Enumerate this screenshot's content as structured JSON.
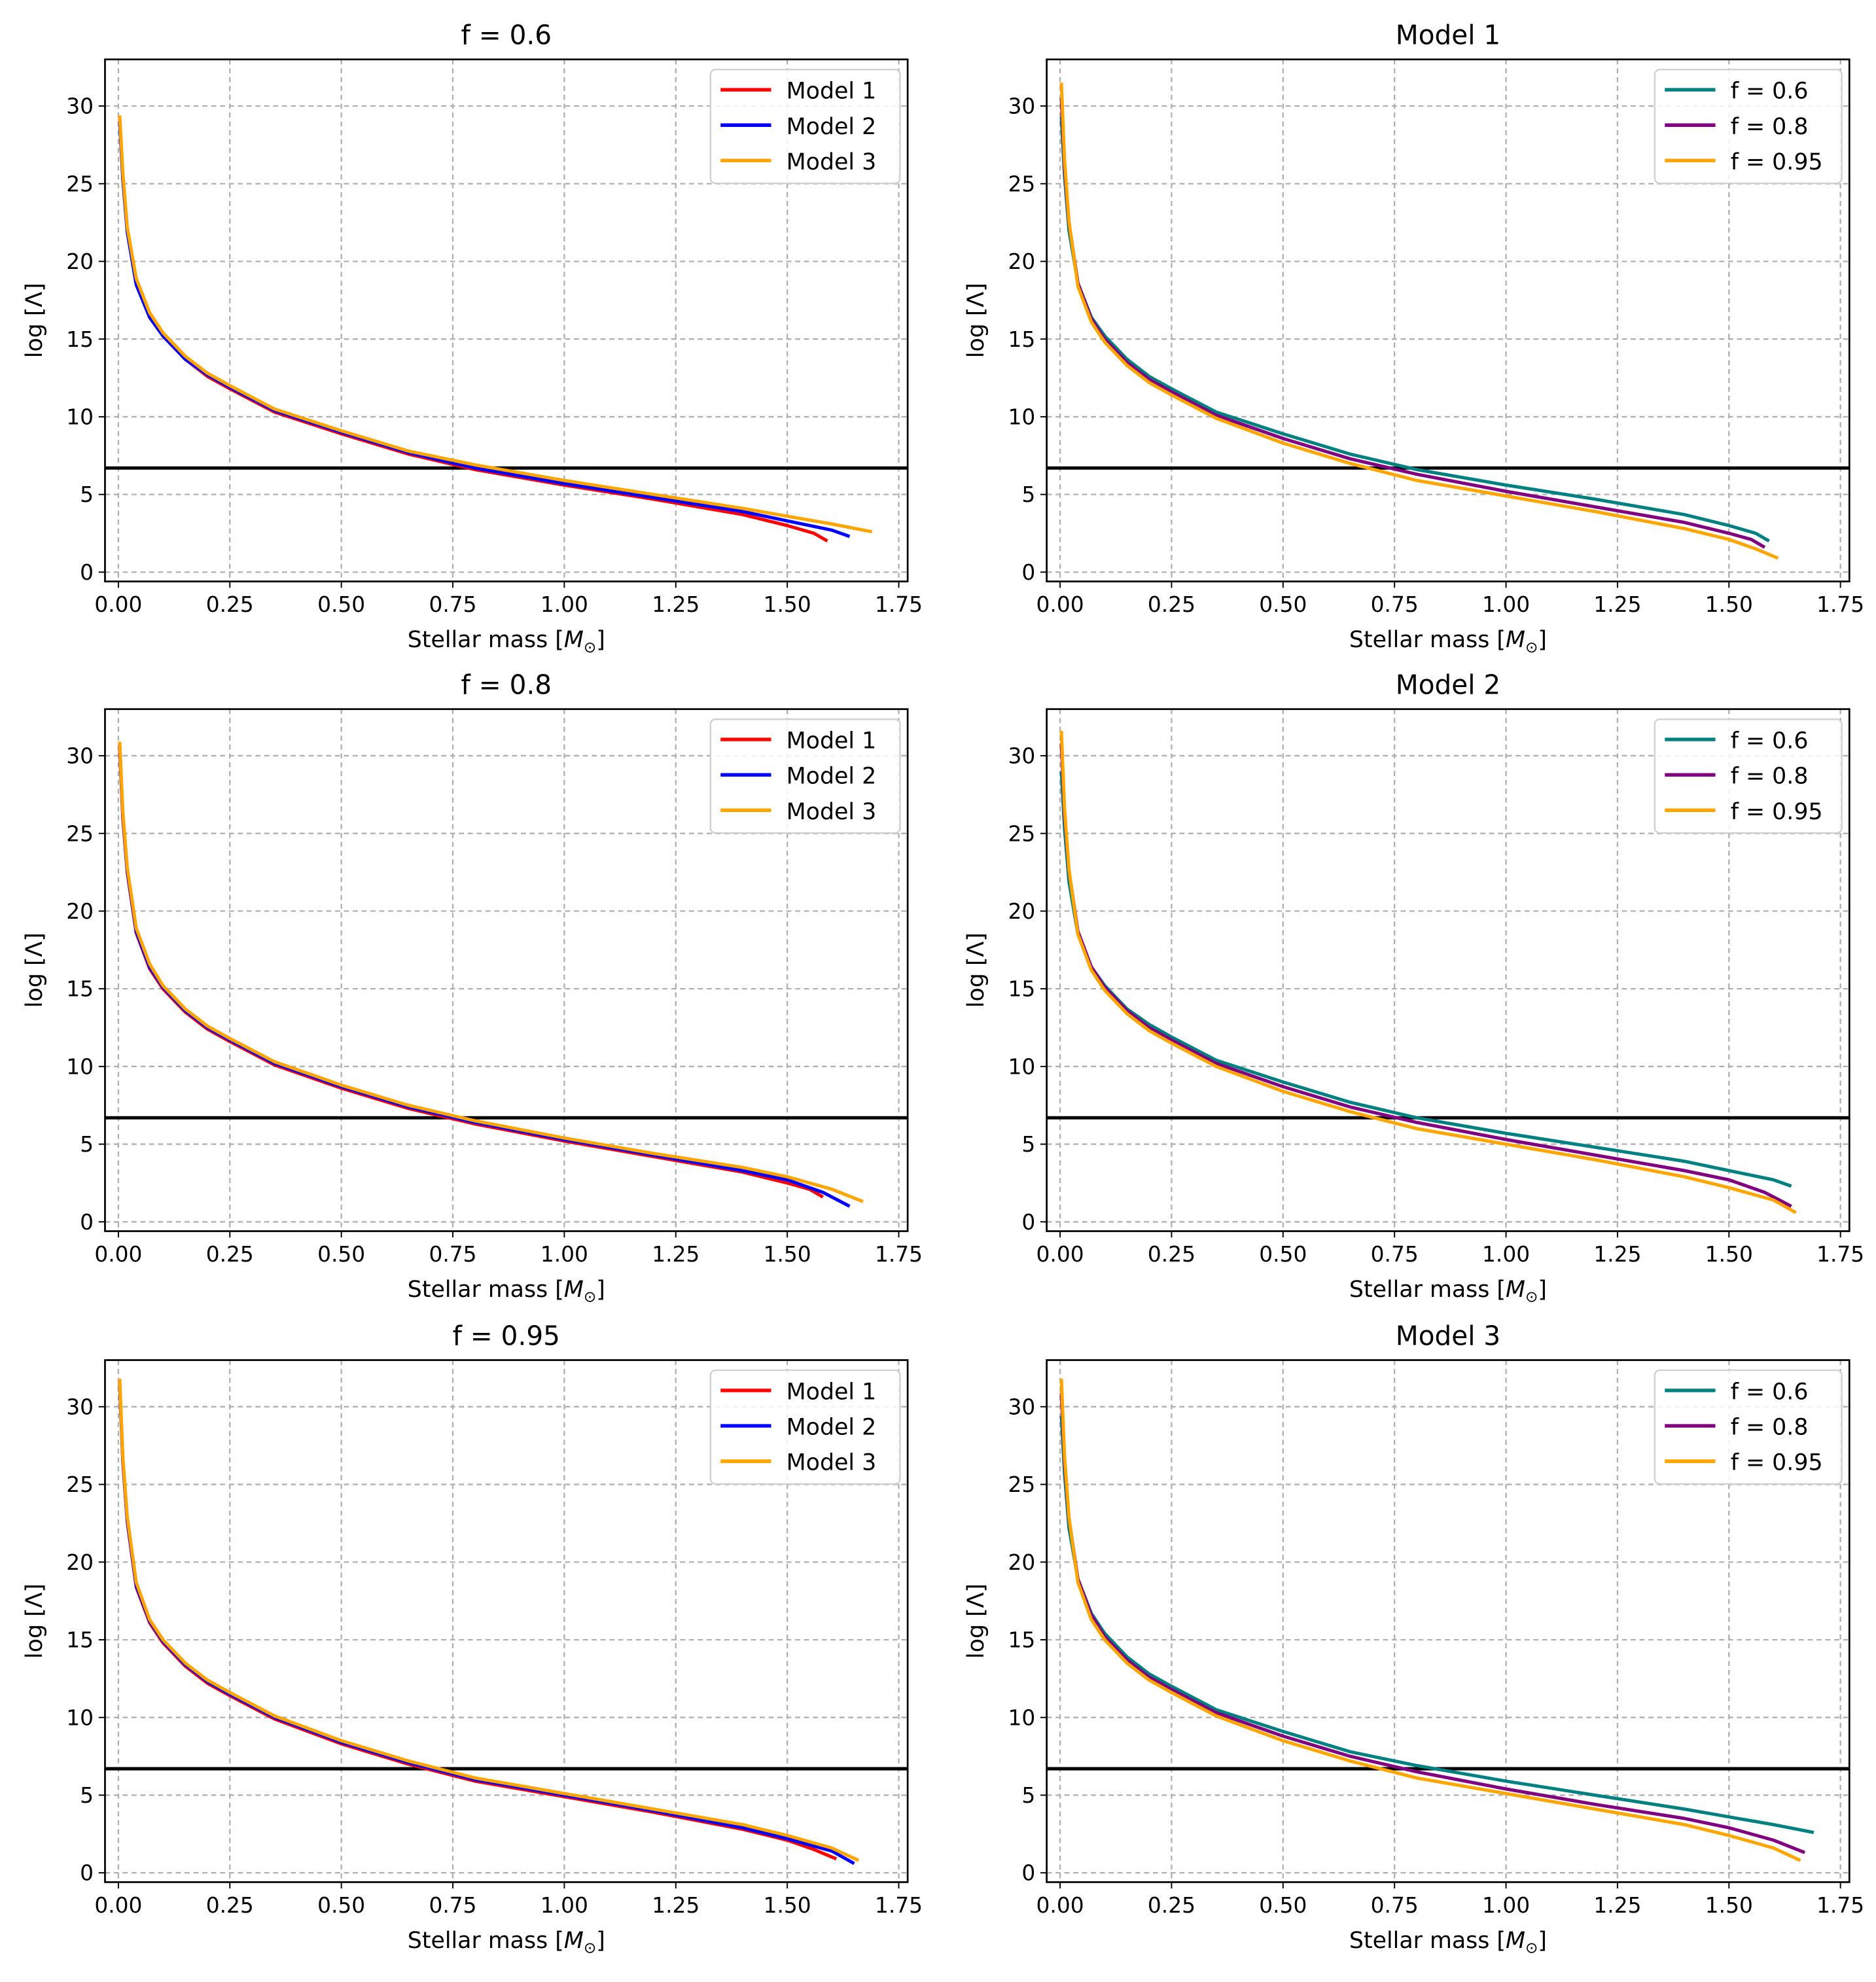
{
  "chart_data": {
    "type": "line",
    "layout": "3 rows x 2 columns",
    "xlabel": "Stellar mass [M⊙]",
    "xlabel_parts": {
      "pre": "Stellar mass [",
      "sym": "M",
      "sub": "⊙",
      "post": "]"
    },
    "ylabel": "log [Λ]",
    "xlim": [
      -0.03,
      1.77
    ],
    "ylim": [
      -0.6,
      33
    ],
    "xticks": [
      0,
      0.25,
      0.5,
      0.75,
      1.0,
      1.25,
      1.5,
      1.75
    ],
    "xtick_labels": [
      "0.00",
      "0.25",
      "0.50",
      "0.75",
      "1.00",
      "1.25",
      "1.50",
      "1.75"
    ],
    "yticks": [
      0,
      5,
      10,
      15,
      20,
      25,
      30
    ],
    "ytick_labels": [
      "0",
      "5",
      "10",
      "15",
      "20",
      "25",
      "30"
    ],
    "grid": true,
    "legend_placement": "top-right",
    "hline": {
      "y": 6.7,
      "color": "#000000"
    },
    "colors": {
      "Model 1": "#ff0000",
      "Model 2": "#0000ff",
      "Model 3": "#ffa500",
      "f = 0.6": "#008080",
      "f = 0.8": "#800080",
      "f = 0.95": "#ffa500"
    },
    "mass_grid": [
      0.003,
      0.01,
      0.02,
      0.04,
      0.07,
      0.1,
      0.15,
      0.2,
      0.25,
      0.35,
      0.5,
      0.65,
      0.8,
      1.0,
      1.2,
      1.4,
      1.5
    ],
    "curves": {
      "f = 0.6": {
        "Model 1": {
          "y": [
            29.3,
            25.5,
            22,
            18.6,
            16.4,
            15.2,
            13.7,
            12.6,
            11.8,
            10.3,
            8.9,
            7.6,
            6.6,
            5.6,
            4.7,
            3.7,
            3.0
          ],
          "tail": [
            [
              1.56,
              2.5
            ],
            [
              1.59,
              2.0
            ]
          ]
        },
        "Model 2": {
          "y": [
            29.0,
            25.3,
            21.9,
            18.5,
            16.4,
            15.2,
            13.7,
            12.7,
            11.9,
            10.4,
            9.0,
            7.7,
            6.7,
            5.7,
            4.8,
            3.9,
            3.3
          ],
          "tail": [
            [
              1.6,
              2.7
            ],
            [
              1.64,
              2.3
            ]
          ]
        },
        "Model 3": {
          "y": [
            29.4,
            25.7,
            22.2,
            18.9,
            16.7,
            15.4,
            13.9,
            12.8,
            12.0,
            10.5,
            9.1,
            7.8,
            6.9,
            5.9,
            5.0,
            4.1,
            3.6
          ],
          "tail": [
            [
              1.6,
              3.1
            ],
            [
              1.69,
              2.6
            ]
          ]
        }
      },
      "f = 0.8": {
        "Model 1": {
          "y": [
            30.5,
            26,
            22.5,
            18.6,
            16.3,
            15.0,
            13.5,
            12.4,
            11.6,
            10.1,
            8.6,
            7.3,
            6.3,
            5.2,
            4.2,
            3.2,
            2.5
          ],
          "tail": [
            [
              1.55,
              2.1
            ],
            [
              1.58,
              1.6
            ]
          ]
        },
        "Model 2": {
          "y": [
            30.8,
            26.2,
            22.6,
            18.7,
            16.4,
            15.1,
            13.6,
            12.5,
            11.7,
            10.2,
            8.7,
            7.4,
            6.4,
            5.3,
            4.3,
            3.3,
            2.7
          ],
          "tail": [
            [
              1.58,
              1.9
            ],
            [
              1.64,
              1.0
            ]
          ]
        },
        "Model 3": {
          "y": [
            30.9,
            26.4,
            22.8,
            18.9,
            16.6,
            15.2,
            13.7,
            12.6,
            11.8,
            10.3,
            8.8,
            7.5,
            6.5,
            5.4,
            4.4,
            3.5,
            2.9
          ],
          "tail": [
            [
              1.6,
              2.1
            ],
            [
              1.67,
              1.3
            ]
          ]
        }
      },
      "f = 0.95": {
        "Model 1": {
          "y": [
            31.5,
            26.5,
            22.6,
            18.4,
            16.1,
            14.8,
            13.3,
            12.2,
            11.4,
            9.9,
            8.3,
            7.0,
            5.9,
            4.9,
            3.9,
            2.8,
            2.1
          ],
          "tail": [
            [
              1.56,
              1.5
            ],
            [
              1.61,
              0.9
            ]
          ]
        },
        "Model 2": {
          "y": [
            31.6,
            26.6,
            22.7,
            18.5,
            16.2,
            14.9,
            13.4,
            12.3,
            11.5,
            10.0,
            8.4,
            7.1,
            6.0,
            5.0,
            4.0,
            2.9,
            2.2
          ],
          "tail": [
            [
              1.6,
              1.4
            ],
            [
              1.65,
              0.6
            ]
          ]
        },
        "Model 3": {
          "y": [
            31.8,
            26.8,
            22.9,
            18.7,
            16.3,
            15.0,
            13.5,
            12.4,
            11.6,
            10.1,
            8.5,
            7.2,
            6.1,
            5.1,
            4.1,
            3.1,
            2.4
          ],
          "tail": [
            [
              1.6,
              1.6
            ],
            [
              1.66,
              0.8
            ]
          ]
        }
      }
    },
    "panels": [
      {
        "title": "f = 0.6",
        "fixed": "f = 0.6",
        "series": [
          "Model 1",
          "Model 2",
          "Model 3"
        ]
      },
      {
        "title": "Model 1",
        "fixed": "Model 1",
        "series": [
          "f = 0.6",
          "f = 0.8",
          "f = 0.95"
        ]
      },
      {
        "title": "f = 0.8",
        "fixed": "f = 0.8",
        "series": [
          "Model 1",
          "Model 2",
          "Model 3"
        ]
      },
      {
        "title": "Model 2",
        "fixed": "Model 2",
        "series": [
          "f = 0.6",
          "f = 0.8",
          "f = 0.95"
        ]
      },
      {
        "title": "f = 0.95",
        "fixed": "f = 0.95",
        "series": [
          "Model 1",
          "Model 2",
          "Model 3"
        ]
      },
      {
        "title": "Model 3",
        "fixed": "Model 3",
        "series": [
          "f = 0.6",
          "f = 0.8",
          "f = 0.95"
        ]
      }
    ]
  }
}
